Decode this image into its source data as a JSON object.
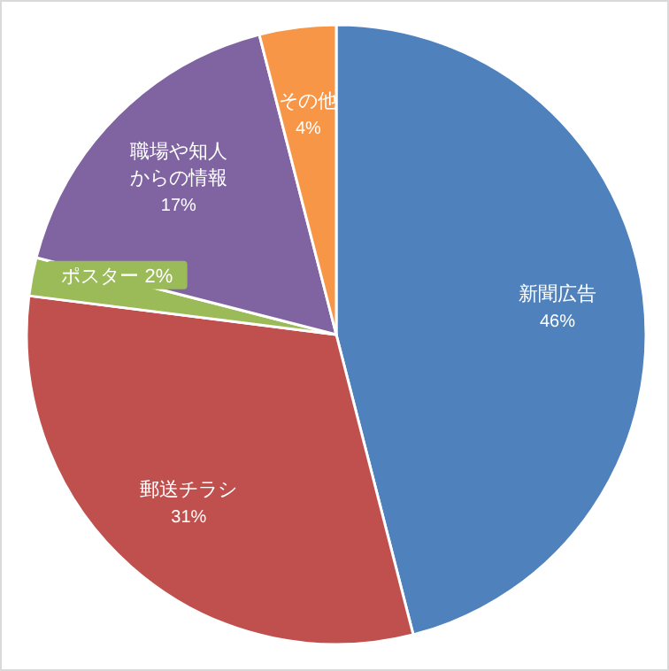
{
  "chart_data": {
    "type": "pie",
    "categories": [
      "新聞広告",
      "郵送チラシ",
      "ポスター",
      "職場や知人からの情報",
      "その他"
    ],
    "values": [
      46,
      31,
      2,
      17,
      4
    ],
    "value_labels": [
      "46%",
      "31%",
      "2%",
      "17%",
      "4%"
    ],
    "colors": [
      "#4f81bd",
      "#c0504d",
      "#9bbb59",
      "#8064a2",
      "#f79646"
    ]
  }
}
